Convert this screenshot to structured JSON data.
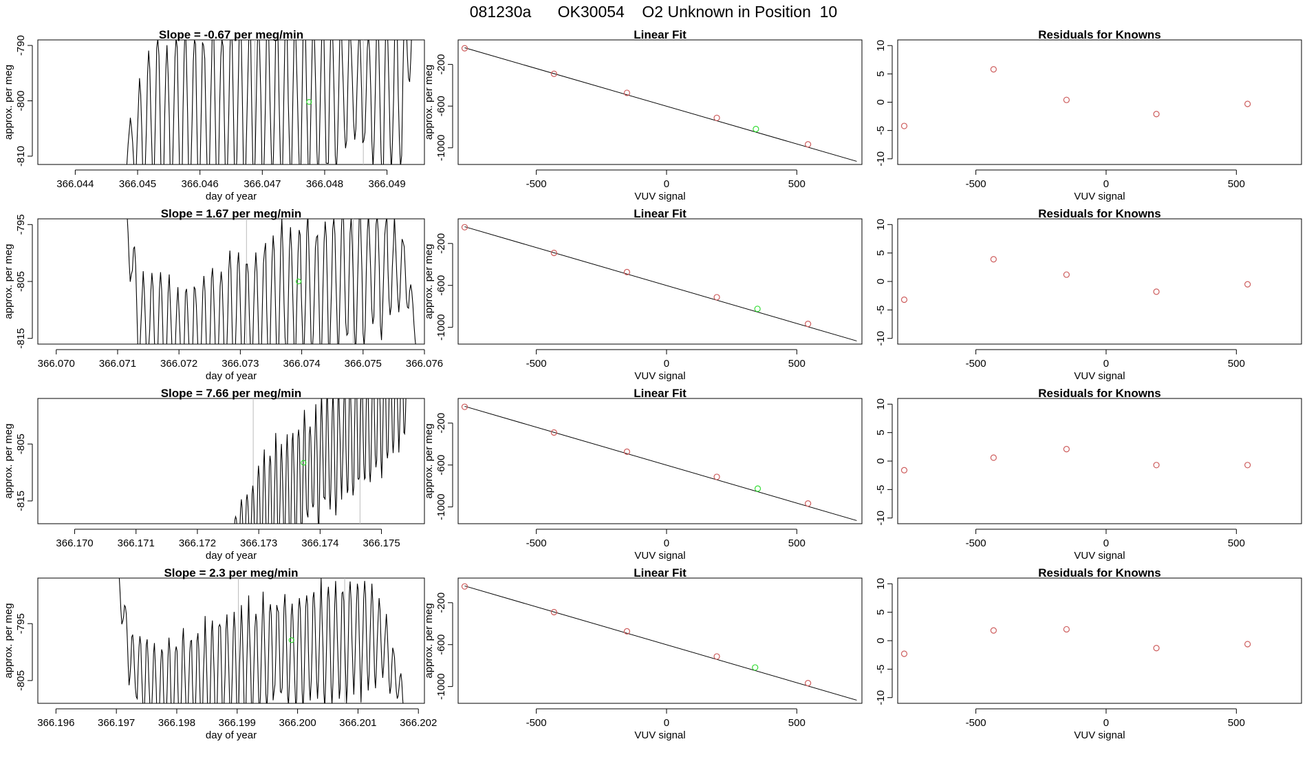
{
  "page_title": "081230a      OK30054    O2 Unknown in Position  10",
  "colors": {
    "trace": "#000000",
    "known_point": "#cd5c5c",
    "unknown_point": "#33dd33",
    "guide_line": "#bbbbbb",
    "fit_line": "#000000"
  },
  "chart_data": [
    {
      "type": "line",
      "row": 1,
      "title": "Slope =  -0.67  per meg/min",
      "xlabel": "day of year",
      "ylabel": "approx. per meg",
      "xlim": [
        366.0434,
        366.0496
      ],
      "ylim": [
        -811.5,
        -789
      ],
      "xticks": [
        "366.044",
        "366.045",
        "366.046",
        "366.047",
        "366.048",
        "366.049"
      ],
      "yticks": [
        "-790",
        "-800",
        "-810"
      ],
      "window": [
        366.0447,
        366.0494
      ],
      "osc_periods": 32,
      "profile": [
        [
          0,
          -819,
          0
        ],
        [
          0.03,
          -808,
          3
        ],
        [
          0.12,
          -803,
          15
        ],
        [
          0.3,
          -802,
          15
        ],
        [
          0.5,
          -800,
          15
        ],
        [
          0.72,
          -799,
          15
        ],
        [
          0.8,
          -797,
          9
        ],
        [
          0.9,
          -800,
          15
        ],
        [
          0.97,
          -797,
          15
        ],
        [
          1.0,
          -786,
          4
        ]
      ],
      "marker_lines": [
        366.04688,
        366.04862
      ],
      "unknown_point": [
        366.04775,
        -800.2
      ]
    },
    {
      "type": "line",
      "row": 2,
      "title": "Slope =  1.67  per meg/min",
      "xlabel": "day of year",
      "ylabel": "approx. per meg",
      "xlim": [
        366.0697,
        366.076
      ],
      "ylim": [
        -816,
        -794
      ],
      "xticks": [
        "366.070",
        "366.071",
        "366.072",
        "366.073",
        "366.074",
        "366.075",
        "366.076"
      ],
      "yticks": [
        "-795",
        "-805",
        "-815"
      ],
      "window": [
        366.0711,
        366.0759
      ],
      "osc_periods": 34,
      "profile": [
        [
          0,
          -790,
          2
        ],
        [
          0.05,
          -812,
          8
        ],
        [
          0.2,
          -815,
          9
        ],
        [
          0.45,
          -810,
          12
        ],
        [
          0.6,
          -807,
          12
        ],
        [
          0.8,
          -804,
          12
        ],
        [
          0.9,
          -803,
          10
        ],
        [
          0.96,
          -803,
          6
        ],
        [
          1.0,
          -818,
          1
        ]
      ],
      "marker_lines": [
        366.0731,
        366.07484
      ],
      "unknown_point": [
        366.07395,
        -805
      ]
    },
    {
      "type": "line",
      "row": 3,
      "title": "Slope =  7.66  per meg/min",
      "xlabel": "day of year",
      "ylabel": "approx. per meg",
      "xlim": [
        366.1694,
        366.1757
      ],
      "ylim": [
        -819,
        -797
      ],
      "xticks": [
        "366.170",
        "366.171",
        "366.172",
        "366.173",
        "366.174",
        "366.175"
      ],
      "yticks": [
        "-805",
        "-815"
      ],
      "window": [
        366.1726,
        366.1754
      ],
      "osc_periods": 30,
      "profile": [
        [
          0,
          -820,
          2
        ],
        [
          0.2,
          -816,
          10
        ],
        [
          0.5,
          -808,
          10
        ],
        [
          0.8,
          -801,
          10
        ],
        [
          1.0,
          -796,
          8
        ]
      ],
      "flat": [
        366.1694,
        366.1724,
        -819.5
      ],
      "marker_lines": [
        366.17291,
        366.17465
      ],
      "unknown_point": [
        366.17373,
        -808.3
      ]
    },
    {
      "type": "line",
      "row": 4,
      "title": "Slope =  2.3  per meg/min",
      "xlabel": "day of year",
      "ylabel": "approx. per meg",
      "xlim": [
        366.1957,
        366.2021
      ],
      "ylim": [
        -809,
        -787
      ],
      "xticks": [
        "366.196",
        "366.197",
        "366.198",
        "366.199",
        "366.200",
        "366.201",
        "366.202"
      ],
      "yticks": [
        "-795",
        "-805"
      ],
      "window": [
        366.197,
        366.2018
      ],
      "osc_periods": 40,
      "profile": [
        [
          0,
          -785,
          2
        ],
        [
          0.05,
          -802,
          6
        ],
        [
          0.15,
          -807,
          8
        ],
        [
          0.4,
          -803,
          10
        ],
        [
          0.55,
          -800,
          9
        ],
        [
          0.7,
          -799,
          10
        ],
        [
          0.85,
          -797,
          10
        ],
        [
          0.92,
          -798,
          6
        ],
        [
          1.0,
          -810,
          2
        ]
      ],
      "marker_lines": [
        366.19902,
        366.20078
      ],
      "unknown_point": [
        366.1999,
        -797.9
      ]
    },
    {
      "type": "scatter",
      "row": 1,
      "title": "Linear Fit",
      "xlabel": "VUV signal",
      "ylabel": "approx. per meg",
      "xlim": [
        -800,
        750
      ],
      "ylim": [
        -1160,
        35
      ],
      "xticks": [
        -500,
        0,
        500
      ],
      "yticks": [
        -200,
        -600,
        -1000
      ],
      "line": [
        [
          -775,
          -40
        ],
        [
          730,
          -1130
        ]
      ],
      "known_points": [
        [
          -775,
          -45
        ],
        [
          -432,
          -290
        ],
        [
          -152,
          -473
        ],
        [
          193,
          -713
        ],
        [
          543,
          -967
        ]
      ],
      "unknown_point": [
        343,
        -820
      ]
    },
    {
      "type": "scatter",
      "row": 2,
      "title": "Linear Fit",
      "xlabel": "VUV signal",
      "ylabel": "approx. per meg",
      "xlim": [
        -800,
        750
      ],
      "ylim": [
        -1160,
        35
      ],
      "xticks": [
        -500,
        0,
        500
      ],
      "yticks": [
        -200,
        -600,
        -1000
      ],
      "line": [
        [
          -775,
          -40
        ],
        [
          730,
          -1130
        ]
      ],
      "known_points": [
        [
          -775,
          -45
        ],
        [
          -432,
          -290
        ],
        [
          -152,
          -473
        ],
        [
          193,
          -713
        ],
        [
          543,
          -967
        ]
      ],
      "unknown_point": [
        349,
        -824
      ]
    },
    {
      "type": "scatter",
      "row": 3,
      "title": "Linear Fit",
      "xlabel": "VUV signal",
      "ylabel": "approx. per meg",
      "xlim": [
        -800,
        750
      ],
      "ylim": [
        -1160,
        35
      ],
      "xticks": [
        -500,
        0,
        500
      ],
      "yticks": [
        -200,
        -600,
        -1000
      ],
      "line": [
        [
          -775,
          -40
        ],
        [
          730,
          -1130
        ]
      ],
      "known_points": [
        [
          -775,
          -45
        ],
        [
          -432,
          -290
        ],
        [
          -152,
          -473
        ],
        [
          193,
          -713
        ],
        [
          543,
          -967
        ]
      ],
      "unknown_point": [
        350,
        -825
      ]
    },
    {
      "type": "scatter",
      "row": 4,
      "title": "Linear Fit",
      "xlabel": "VUV signal",
      "ylabel": "approx. per meg",
      "xlim": [
        -800,
        750
      ],
      "ylim": [
        -1160,
        35
      ],
      "xticks": [
        -500,
        0,
        500
      ],
      "yticks": [
        -200,
        -600,
        -1000
      ],
      "line": [
        [
          -775,
          -40
        ],
        [
          730,
          -1130
        ]
      ],
      "known_points": [
        [
          -775,
          -45
        ],
        [
          -432,
          -290
        ],
        [
          -152,
          -473
        ],
        [
          193,
          -713
        ],
        [
          543,
          -967
        ]
      ],
      "unknown_point": [
        340,
        -818
      ]
    },
    {
      "type": "scatter",
      "row": 1,
      "title": "Residuals for Knowns",
      "xlabel": "VUV signal",
      "ylabel": "",
      "xlim": [
        -800,
        750
      ],
      "ylim": [
        -11,
        11
      ],
      "xticks": [
        -500,
        0,
        500
      ],
      "yticks": [
        10,
        5,
        0,
        -5,
        -10
      ],
      "known_points": [
        [
          -775,
          -4.2
        ],
        [
          -432,
          5.8
        ],
        [
          -152,
          0.4
        ],
        [
          193,
          -2.1
        ],
        [
          543,
          -0.3
        ]
      ]
    },
    {
      "type": "scatter",
      "row": 2,
      "title": "Residuals for Knowns",
      "xlabel": "VUV signal",
      "ylabel": "",
      "xlim": [
        -800,
        750
      ],
      "ylim": [
        -11,
        11
      ],
      "xticks": [
        -500,
        0,
        500
      ],
      "yticks": [
        10,
        5,
        0,
        -5,
        -10
      ],
      "known_points": [
        [
          -775,
          -3.2
        ],
        [
          -432,
          3.9
        ],
        [
          -152,
          1.2
        ],
        [
          193,
          -1.8
        ],
        [
          543,
          -0.5
        ]
      ]
    },
    {
      "type": "scatter",
      "row": 3,
      "title": "Residuals for Knowns",
      "xlabel": "VUV signal",
      "ylabel": "",
      "xlim": [
        -800,
        750
      ],
      "ylim": [
        -11,
        11
      ],
      "xticks": [
        -500,
        0,
        500
      ],
      "yticks": [
        10,
        5,
        0,
        -5,
        -10
      ],
      "known_points": [
        [
          -775,
          -1.6
        ],
        [
          -432,
          0.6
        ],
        [
          -152,
          2.1
        ],
        [
          193,
          -0.7
        ],
        [
          543,
          -0.7
        ]
      ]
    },
    {
      "type": "scatter",
      "row": 4,
      "title": "Residuals for Knowns",
      "xlabel": "VUV signal",
      "ylabel": "",
      "xlim": [
        -800,
        750
      ],
      "ylim": [
        -11,
        11
      ],
      "xticks": [
        -500,
        0,
        500
      ],
      "yticks": [
        10,
        5,
        0,
        -5,
        -10
      ],
      "known_points": [
        [
          -775,
          -2.3
        ],
        [
          -432,
          1.8
        ],
        [
          -152,
          2.0
        ],
        [
          193,
          -1.3
        ],
        [
          543,
          -0.6
        ]
      ]
    }
  ]
}
